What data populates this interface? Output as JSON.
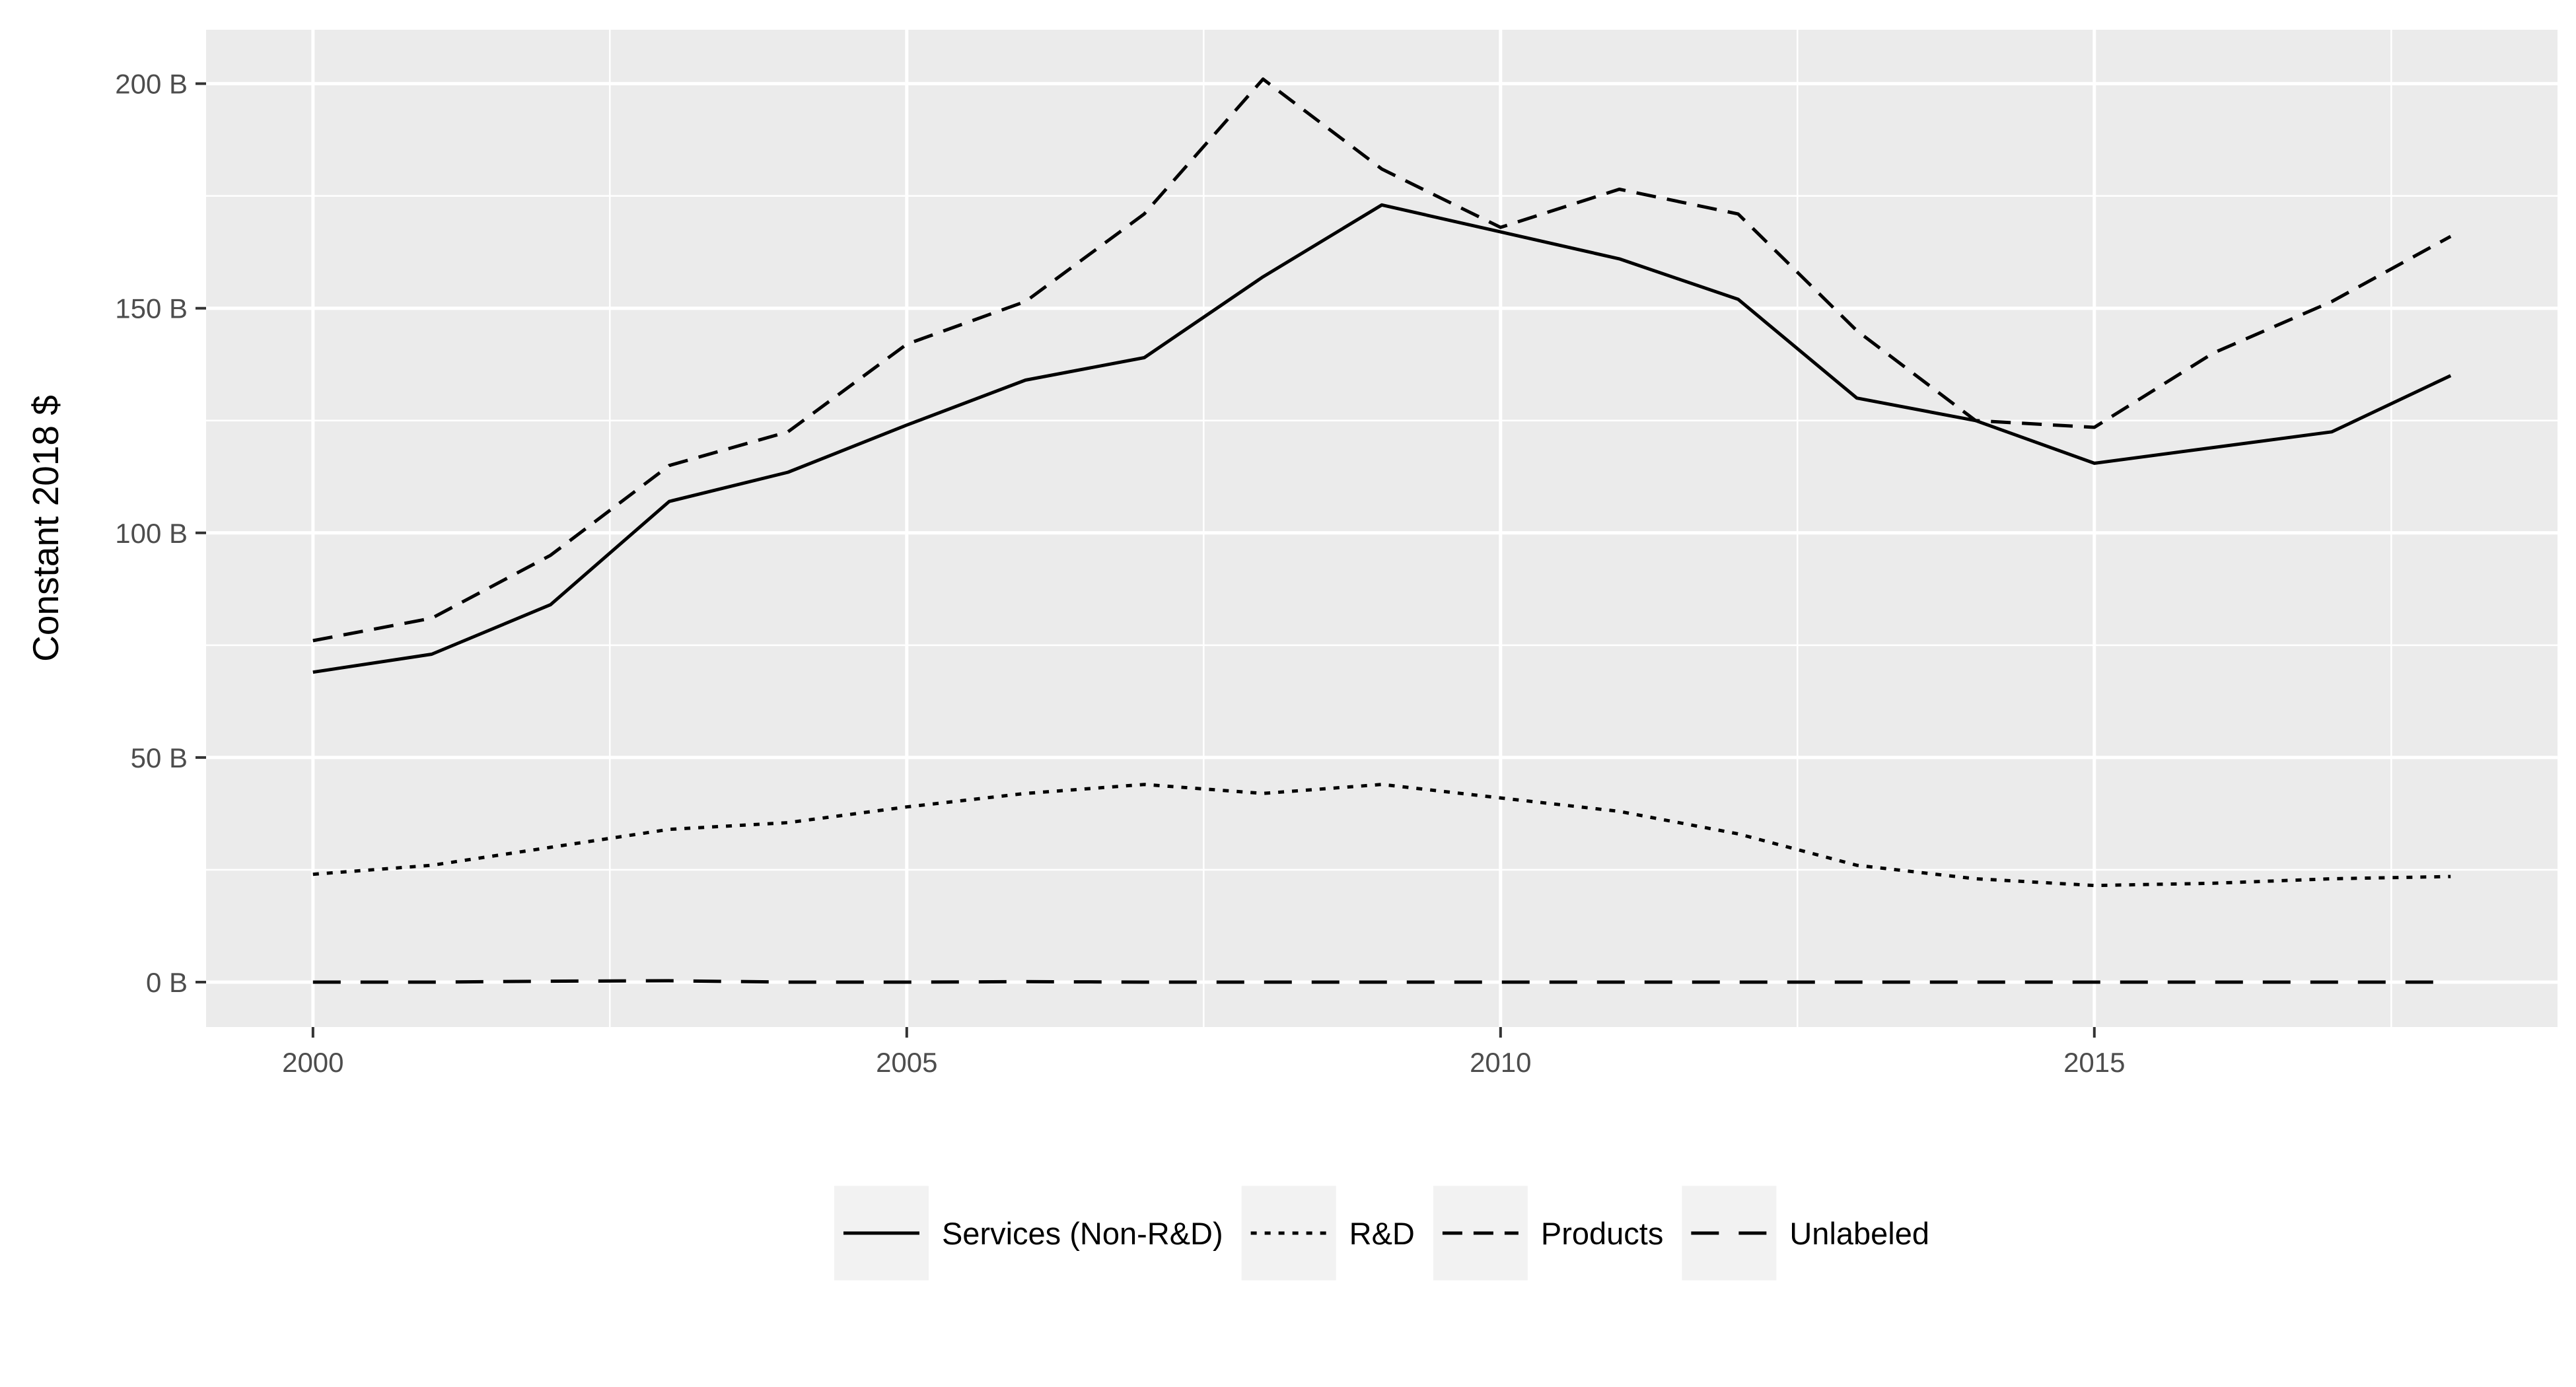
{
  "chart_data": {
    "type": "line",
    "title": "",
    "xlabel": "",
    "ylabel": "Constant 2018 $",
    "x": [
      2000,
      2001,
      2002,
      2003,
      2004,
      2005,
      2006,
      2007,
      2008,
      2009,
      2010,
      2011,
      2012,
      2013,
      2014,
      2015,
      2016,
      2017,
      2018
    ],
    "xlim": [
      1999.1,
      2018.9
    ],
    "ylim": [
      -10,
      212
    ],
    "x_ticks": [
      2000,
      2005,
      2010,
      2015
    ],
    "x_tick_labels": [
      "2000",
      "2005",
      "2010",
      "2015"
    ],
    "y_ticks": [
      0,
      50,
      100,
      150,
      200
    ],
    "y_tick_labels": [
      "0 B",
      "50 B",
      "100 B",
      "150 B",
      "200 B"
    ],
    "grid": true,
    "legend_position": "bottom",
    "background": "#ebebeb",
    "line_color": "#000000",
    "series": [
      {
        "name": "Services (Non-R&D)",
        "line_style": "solid",
        "values": [
          69,
          73,
          84,
          107,
          113.5,
          124,
          134,
          139,
          157,
          173,
          167,
          161,
          152,
          130,
          125,
          115.5,
          119,
          122.5,
          135
        ]
      },
      {
        "name": "R&D",
        "line_style": "dotted",
        "values": [
          24,
          26,
          30,
          34,
          35.5,
          39,
          42,
          44,
          42,
          44,
          41,
          38,
          33,
          26,
          23,
          21.5,
          22,
          23,
          23.5
        ]
      },
      {
        "name": "Products",
        "line_style": "dashed",
        "values": [
          76,
          81,
          95,
          115,
          122.5,
          142,
          151.5,
          171,
          201,
          181,
          168,
          176.5,
          171,
          145,
          125,
          123.5,
          140,
          151.5,
          166
        ]
      },
      {
        "name": "Unlabeled",
        "line_style": "longdash",
        "values": [
          0,
          0,
          0.2,
          0.3,
          0,
          0,
          0.1,
          0,
          0,
          0,
          0,
          0,
          0,
          0,
          0,
          0,
          0,
          0,
          0
        ]
      }
    ]
  }
}
